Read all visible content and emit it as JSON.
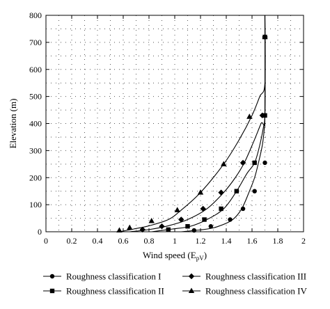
{
  "chart_data": {
    "type": "line",
    "xlabel": "Wind speed (E",
    "xlabel_sub": "pV",
    "xlabel_close": ")",
    "ylabel": "Elevation (m)",
    "xlim": [
      0,
      2
    ],
    "ylim": [
      0,
      800
    ],
    "xticks": [
      0,
      0.2,
      0.4,
      0.6,
      0.8,
      1,
      1.2,
      1.4,
      1.6,
      1.8,
      2
    ],
    "xtick_labels": [
      "0",
      "0.2",
      "0.4",
      "0.6",
      "0.8",
      "1",
      "1.2",
      "1.4",
      "1.6",
      "1.8",
      "2"
    ],
    "yticks": [
      0,
      100,
      200,
      300,
      400,
      500,
      600,
      700,
      800
    ],
    "ytick_labels": [
      "0",
      "100",
      "200",
      "300",
      "400",
      "500",
      "600",
      "700",
      "800"
    ],
    "grid": true,
    "legend_position": "bottom",
    "series": [
      {
        "name": "Roughness classification I",
        "marker": "circle",
        "curve": [
          [
            1.05,
            0
          ],
          [
            1.25,
            10
          ],
          [
            1.35,
            22
          ],
          [
            1.45,
            45
          ],
          [
            1.52,
            85
          ],
          [
            1.58,
            150
          ],
          [
            1.62,
            200
          ],
          [
            1.65,
            255
          ],
          [
            1.68,
            320
          ],
          [
            1.695,
            380
          ],
          [
            1.7,
            430
          ],
          [
            1.7,
            800
          ]
        ],
        "markers": [
          [
            1.15,
            5
          ],
          [
            1.28,
            20
          ],
          [
            1.43,
            45
          ],
          [
            1.53,
            85
          ],
          [
            1.62,
            150
          ],
          [
            1.7,
            255
          ],
          [
            1.7,
            720
          ]
        ]
      },
      {
        "name": "Roughness classification II",
        "marker": "square",
        "curve": [
          [
            0.82,
            0
          ],
          [
            0.98,
            10
          ],
          [
            1.12,
            20
          ],
          [
            1.25,
            45
          ],
          [
            1.38,
            85
          ],
          [
            1.48,
            150
          ],
          [
            1.56,
            215
          ],
          [
            1.62,
            255
          ],
          [
            1.66,
            320
          ],
          [
            1.69,
            390
          ],
          [
            1.7,
            430
          ],
          [
            1.7,
            800
          ]
        ],
        "markers": [
          [
            0.95,
            8
          ],
          [
            1.1,
            20
          ],
          [
            1.23,
            45
          ],
          [
            1.36,
            85
          ],
          [
            1.48,
            150
          ],
          [
            1.62,
            255
          ],
          [
            1.7,
            430
          ],
          [
            1.7,
            720
          ]
        ]
      },
      {
        "name": "Roughness classification III",
        "marker": "diamond",
        "curve": [
          [
            0.65,
            0
          ],
          [
            0.8,
            8
          ],
          [
            0.95,
            22
          ],
          [
            1.1,
            45
          ],
          [
            1.25,
            85
          ],
          [
            1.38,
            145
          ],
          [
            1.47,
            200
          ],
          [
            1.54,
            255
          ],
          [
            1.61,
            330
          ],
          [
            1.67,
            400
          ],
          [
            1.7,
            430
          ],
          [
            1.7,
            800
          ]
        ],
        "markers": [
          [
            0.75,
            8
          ],
          [
            0.9,
            20
          ],
          [
            1.05,
            45
          ],
          [
            1.22,
            85
          ],
          [
            1.36,
            145
          ],
          [
            1.53,
            255
          ],
          [
            1.68,
            430
          ],
          [
            1.7,
            720
          ]
        ]
      },
      {
        "name": "Roughness classification IV",
        "marker": "triangle",
        "curve": [
          [
            0.57,
            0
          ],
          [
            0.68,
            10
          ],
          [
            0.8,
            22
          ],
          [
            0.95,
            45
          ],
          [
            1.05,
            80
          ],
          [
            1.2,
            145
          ],
          [
            1.38,
            250
          ],
          [
            1.5,
            340
          ],
          [
            1.6,
            430
          ],
          [
            1.66,
            500
          ],
          [
            1.7,
            550
          ],
          [
            1.7,
            800
          ]
        ],
        "markers": [
          [
            0.57,
            5
          ],
          [
            0.65,
            15
          ],
          [
            0.82,
            40
          ],
          [
            1.02,
            80
          ],
          [
            1.2,
            145
          ],
          [
            1.38,
            250
          ],
          [
            1.58,
            425
          ],
          [
            1.7,
            720
          ]
        ]
      }
    ]
  }
}
